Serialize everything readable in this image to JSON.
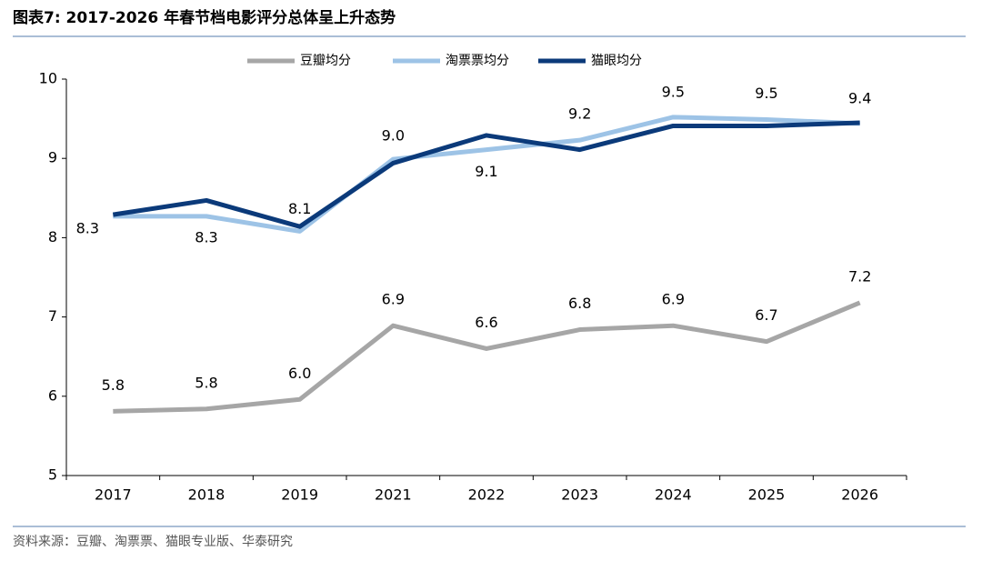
{
  "chart_data": {
    "type": "line",
    "title": "图表7:  2017-2026 年春节档电影评分总体呈上升态势",
    "source": "资料来源：豆瓣、淘票票、猫眼专业版、华泰研究",
    "categories": [
      "2017",
      "2018",
      "2019",
      "2021",
      "2022",
      "2023",
      "2024",
      "2025",
      "2026"
    ],
    "series": [
      {
        "name": "豆瓣均分",
        "color": "#a6a6a6",
        "values": [
          5.81,
          5.84,
          5.96,
          6.89,
          6.6,
          6.84,
          6.89,
          6.69,
          7.18
        ],
        "value_labels": [
          "5.8",
          "5.8",
          "6.0",
          "6.9",
          "6.6",
          "6.8",
          "6.9",
          "6.7",
          "7.2"
        ]
      },
      {
        "name": "淘票票均分",
        "color": "#9dc3e6",
        "values": [
          8.27,
          8.27,
          8.08,
          8.99,
          9.11,
          9.23,
          9.52,
          9.49,
          9.44
        ],
        "value_labels": [
          "8.3",
          "8.3",
          "8.1",
          "9.0",
          "9.1",
          "9.2",
          "9.5",
          "9.5",
          "9.4"
        ]
      },
      {
        "name": "猫眼均分",
        "color": "#0b3a7a",
        "values": [
          8.29,
          8.47,
          8.14,
          8.94,
          9.29,
          9.11,
          9.41,
          9.41,
          9.45
        ]
      }
    ],
    "ylim": [
      5,
      10
    ],
    "yticks": [
      5,
      6,
      7,
      8,
      9,
      10
    ],
    "grid": false,
    "legend": "top"
  }
}
